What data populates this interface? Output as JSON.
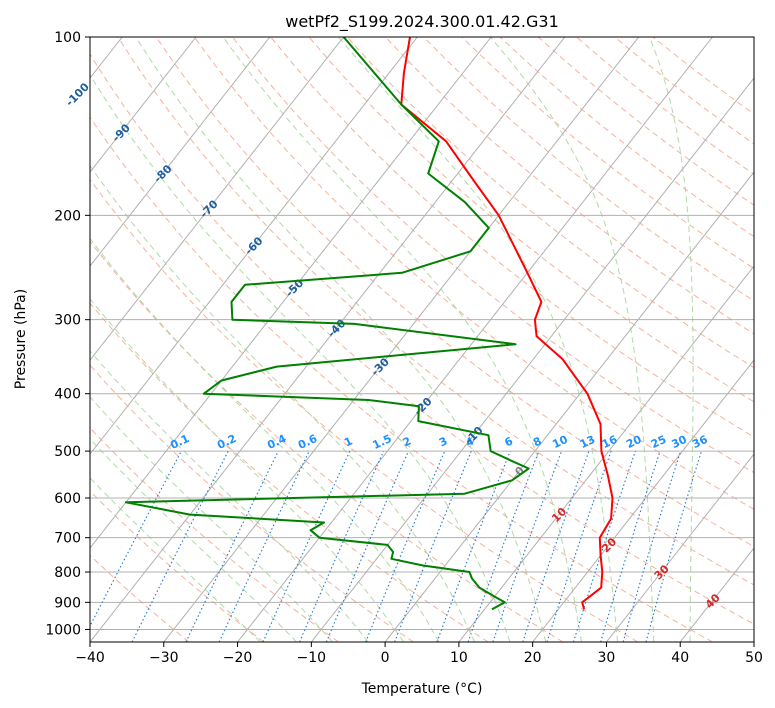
{
  "chart_data": {
    "type": "line",
    "diagram": "skew-t log-p",
    "title": "wetPf2_S199.2024.300.01.42.G31",
    "xlabel": "Temperature (°C)",
    "ylabel": "Pressure (hPa)",
    "xlim": [
      -40,
      50
    ],
    "ylim": [
      1050,
      100
    ],
    "y_scale": "log",
    "grid": true,
    "x_ticks": [
      -40,
      -30,
      -20,
      -10,
      0,
      10,
      20,
      30,
      40,
      50
    ],
    "y_ticks": [
      100,
      200,
      300,
      400,
      500,
      600,
      700,
      800,
      900,
      1000
    ],
    "series": [
      {
        "color": "#ff0000",
        "points": [
          {
            "p": 925,
            "t": 23.5
          },
          {
            "p": 900,
            "t": 22.5
          },
          {
            "p": 875,
            "t": 23.0
          },
          {
            "p": 850,
            "t": 23.5
          },
          {
            "p": 800,
            "t": 22.0
          },
          {
            "p": 750,
            "t": 20.0
          },
          {
            "p": 700,
            "t": 18.0
          },
          {
            "p": 650,
            "t": 17.5
          },
          {
            "p": 600,
            "t": 15.5
          },
          {
            "p": 550,
            "t": 12.5
          },
          {
            "p": 500,
            "t": 9.0
          },
          {
            "p": 450,
            "t": 6.0
          },
          {
            "p": 400,
            "t": 1.0
          },
          {
            "p": 350,
            "t": -6.0
          },
          {
            "p": 320,
            "t": -12.0
          },
          {
            "p": 300,
            "t": -14.0
          },
          {
            "p": 280,
            "t": -15.0
          },
          {
            "p": 250,
            "t": -20.0
          },
          {
            "p": 200,
            "t": -30.0
          },
          {
            "p": 175,
            "t": -37.0
          },
          {
            "p": 150,
            "t": -45.0
          },
          {
            "p": 130,
            "t": -55.0
          },
          {
            "p": 115,
            "t": -58.0
          },
          {
            "p": 100,
            "t": -61.0
          }
        ]
      },
      {
        "color": "#008000",
        "points": [
          {
            "p": 925,
            "t": 11.0
          },
          {
            "p": 900,
            "t": 12.0
          },
          {
            "p": 880,
            "t": 10.0
          },
          {
            "p": 850,
            "t": 7.0
          },
          {
            "p": 820,
            "t": 5.0
          },
          {
            "p": 800,
            "t": 4.0
          },
          {
            "p": 780,
            "t": -3.0
          },
          {
            "p": 760,
            "t": -8.0
          },
          {
            "p": 740,
            "t": -8.5
          },
          {
            "p": 720,
            "t": -10.0
          },
          {
            "p": 700,
            "t": -20.0
          },
          {
            "p": 680,
            "t": -22.0
          },
          {
            "p": 660,
            "t": -21.0
          },
          {
            "p": 640,
            "t": -40.0
          },
          {
            "p": 610,
            "t": -50.0
          },
          {
            "p": 590,
            "t": -5.0
          },
          {
            "p": 560,
            "t": 0.0
          },
          {
            "p": 535,
            "t": 1.0
          },
          {
            "p": 520,
            "t": -2.0
          },
          {
            "p": 500,
            "t": -6.0
          },
          {
            "p": 470,
            "t": -8.0
          },
          {
            "p": 445,
            "t": -19.0
          },
          {
            "p": 420,
            "t": -20.5
          },
          {
            "p": 410,
            "t": -28.0
          },
          {
            "p": 400,
            "t": -51.0
          },
          {
            "p": 380,
            "t": -50.0
          },
          {
            "p": 360,
            "t": -44.0
          },
          {
            "p": 330,
            "t": -14.0
          },
          {
            "p": 305,
            "t": -38.0
          },
          {
            "p": 300,
            "t": -55.0
          },
          {
            "p": 280,
            "t": -57.0
          },
          {
            "p": 262,
            "t": -57.0
          },
          {
            "p": 250,
            "t": -37.0
          },
          {
            "p": 230,
            "t": -30.0
          },
          {
            "p": 210,
            "t": -30.0
          },
          {
            "p": 190,
            "t": -36.0
          },
          {
            "p": 170,
            "t": -44.0
          },
          {
            "p": 150,
            "t": -46.0
          },
          {
            "p": 130,
            "t": -55.0
          },
          {
            "p": 115,
            "t": -62.0
          },
          {
            "p": 100,
            "t": -70.0
          }
        ]
      }
    ],
    "isotherm_labels": [
      "-100",
      "-90",
      "-80",
      "-70",
      "-60",
      "-50",
      "-40",
      "-30",
      "-20",
      "-10",
      "0",
      "10",
      "20",
      "30",
      "40"
    ],
    "isotherm_label_values": [
      -100,
      -90,
      -80,
      -70,
      -60,
      -50,
      -40,
      -30,
      -20,
      -10,
      0,
      10,
      20,
      30,
      40
    ],
    "mixing_ratio_labels": [
      "0.1",
      "0.2",
      "0.4",
      "0.6",
      "1",
      "1.5",
      "2",
      "3",
      "4",
      "6",
      "8",
      "10",
      "13",
      "16",
      "20",
      "25",
      "30",
      "36"
    ],
    "mixing_ratio_values": [
      0.1,
      0.2,
      0.4,
      0.6,
      1,
      1.5,
      2,
      3,
      4,
      6,
      8,
      10,
      13,
      16,
      20,
      25,
      30,
      36
    ],
    "colors": {
      "temperature": "#ff0000",
      "dewpoint": "#008000",
      "dry_adiabat": "#f4a58a",
      "moist_adiabat": "#a8d5a0",
      "mixing_ratio": "#1f77d4",
      "isotherm_grid": "#b0b0b0",
      "isotherm_label_cold": "#1f5f9f",
      "isotherm_label_warm": "#d62728",
      "isotherm_label_zero": "#808080",
      "mixing_ratio_label": "#1e90ff"
    }
  }
}
